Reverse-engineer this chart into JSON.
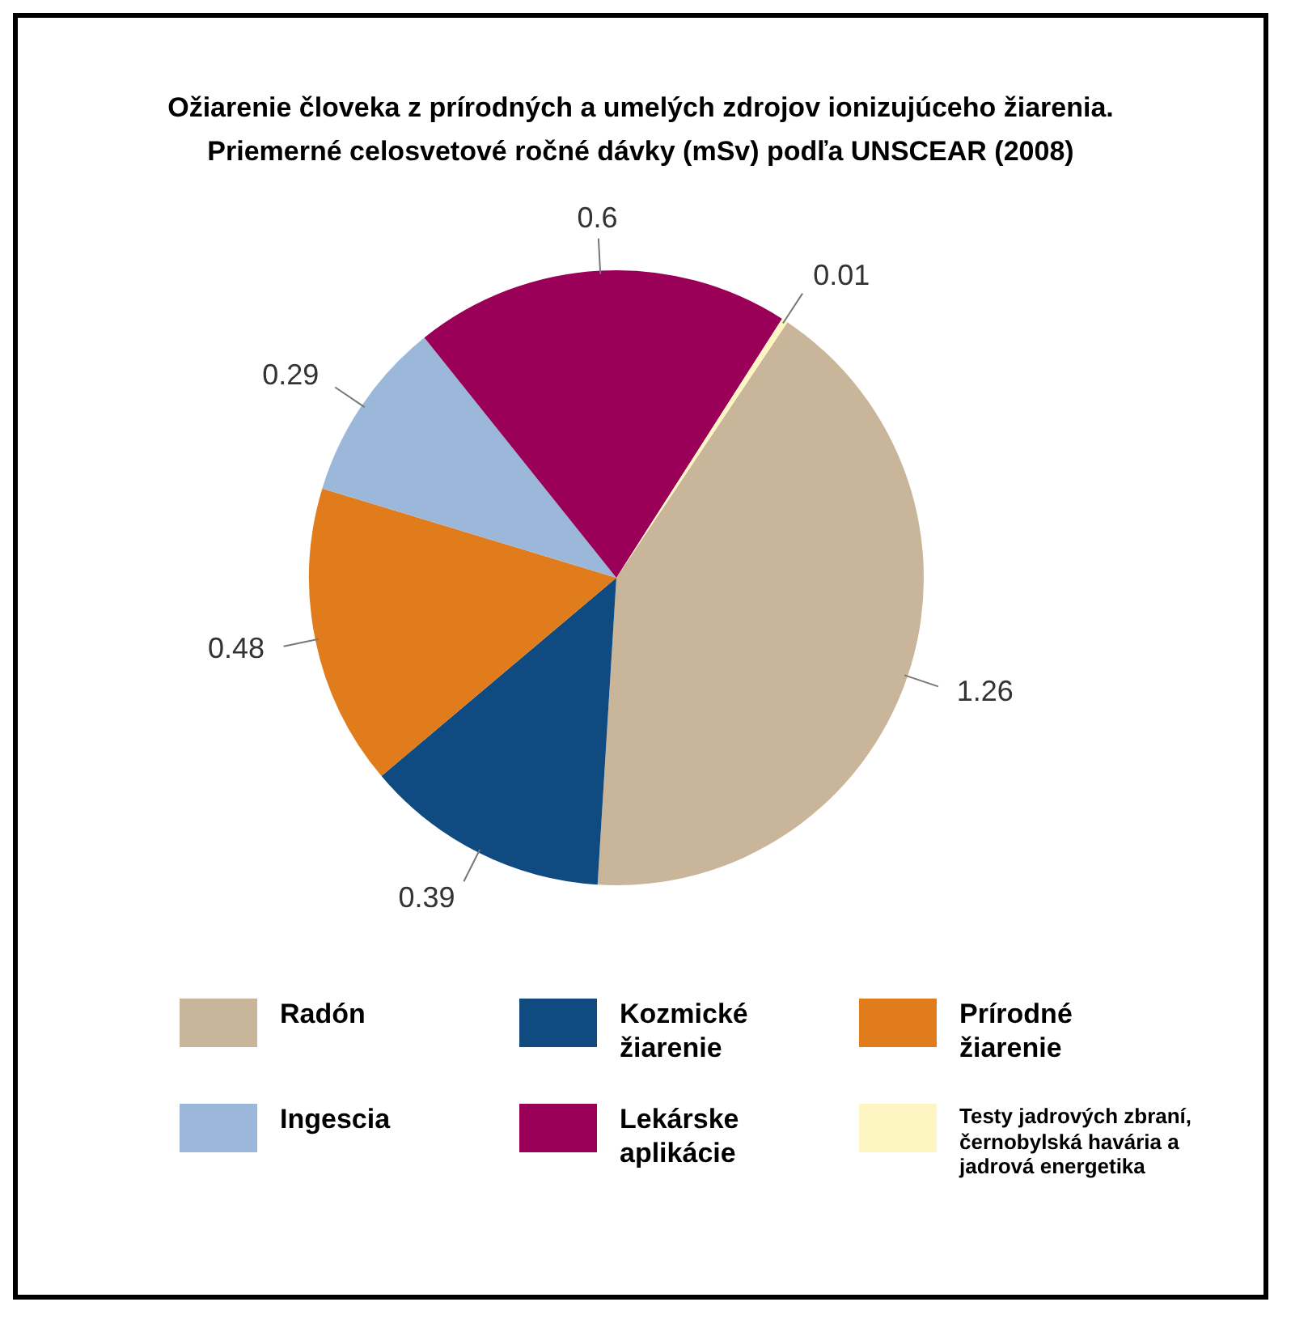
{
  "chart_data": {
    "type": "pie",
    "title": "Ožiarenie človeka z prírodných a umelých zdrojov ionizujúceho žiarenia.",
    "subtitle": "Priemerné celosvetové ročné dávky (mSv) podľa UNSCEAR (2008)",
    "categories": [
      "Radón",
      "Kozmické žiarenie",
      "Prírodné žiarenie",
      "Ingescia",
      "Lekárske aplikácie",
      "Testy jadrových zbraní, černobylská havária a jadrová energetika"
    ],
    "values": [
      1.26,
      0.39,
      0.48,
      0.29,
      0.6,
      0.01
    ],
    "colors": [
      "#c8b59a",
      "#0f4a80",
      "#e07c1c",
      "#9bb8da",
      "#9a0057",
      "#fdf6c3"
    ],
    "data_labels": true,
    "legend": "bottom"
  }
}
